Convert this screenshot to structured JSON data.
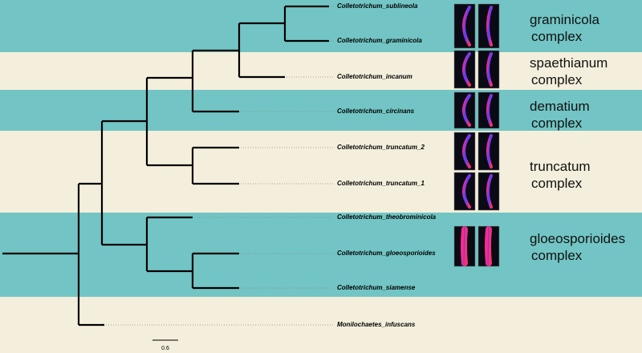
{
  "taxa": [
    "Colletotrichum_sublineola",
    "Colletotrichum_graminicola",
    "Colletotrichum_incanum",
    "Colletotrichum_circinans",
    "Colletotrichum_truncatum_2",
    "Colletotrichum_truncatum_1",
    "Colletotrichum_theobrominicola",
    "Colletotrichum_gloeosporioides",
    "Colletotrichum_siamense",
    "Monilochaetes_infuscans"
  ],
  "groups": [
    {
      "line1": "graminicola",
      "line2": "complex"
    },
    {
      "line1": "spaethianum",
      "line2": "complex"
    },
    {
      "line1": "dematium",
      "line2": "complex"
    },
    {
      "line1": "truncatum",
      "line2": "complex"
    },
    {
      "line1": "gloeosporioides",
      "line2": "complex"
    }
  ],
  "scale_bar": {
    "label": "0.6"
  }
}
